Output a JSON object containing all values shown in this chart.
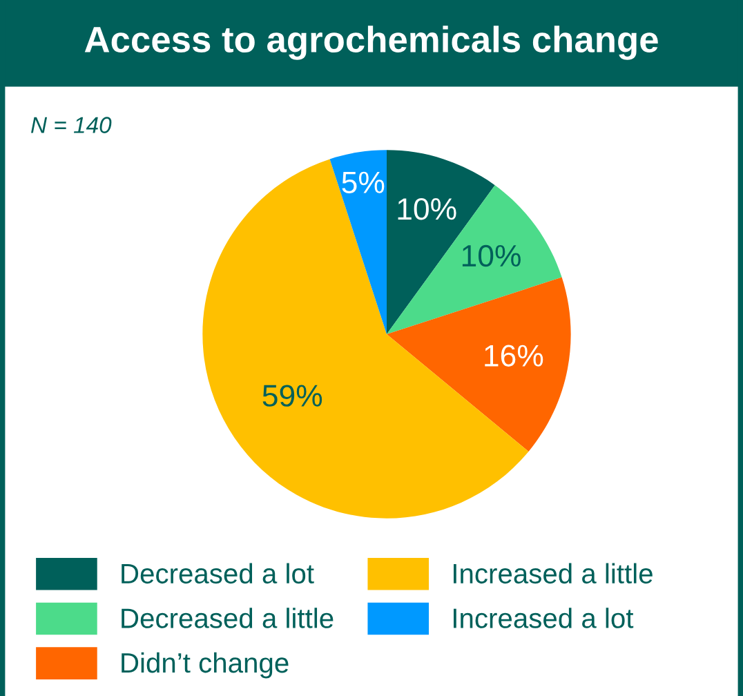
{
  "chart_data": {
    "type": "pie",
    "title": "Access to agrochemicals change",
    "annotations": [
      "N = 140"
    ],
    "categories": [
      "Decreased a lot",
      "Decreased a little",
      "Didn’t change",
      "Increased a little",
      "Increased a lot"
    ],
    "values": [
      10,
      10,
      16,
      59,
      5
    ],
    "colors": [
      "#00605a",
      "#4cdb8a",
      "#ff6600",
      "#ffc000",
      "#0099ff"
    ],
    "value_labels": [
      "10%",
      "10%",
      "16%",
      "59%",
      "5%"
    ],
    "legend": "bottom"
  }
}
